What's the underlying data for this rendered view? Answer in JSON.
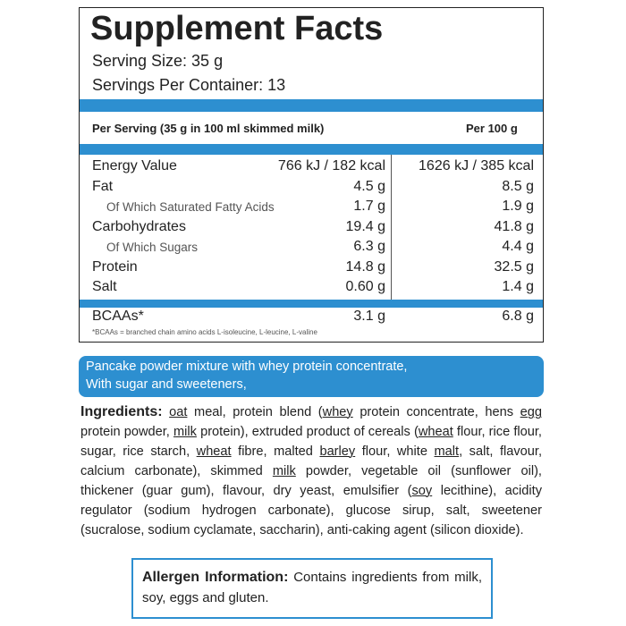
{
  "facts": {
    "title": "Supplement Facts",
    "serving_size": "Serving Size: 35 g",
    "servings_per_container": "Servings Per Container: 13",
    "col_header_1": "Per Serving (35 g in 100 ml skimmed milk)",
    "col_header_2": "Per 100 g",
    "rows": [
      {
        "name": "Energy Value",
        "per_serving": "766 kJ / 182 kcal",
        "per_100g": "1626 kJ / 385 kcal",
        "sub": false
      },
      {
        "name": "Fat",
        "per_serving": "4.5 g",
        "per_100g": "8.5 g",
        "sub": false
      },
      {
        "name": "Of Which Saturated Fatty Acids",
        "per_serving": "1.7 g",
        "per_100g": "1.9 g",
        "sub": true
      },
      {
        "name": "Carbohydrates",
        "per_serving": "19.4 g",
        "per_100g": "41.8 g",
        "sub": false
      },
      {
        "name": "Of Which Sugars",
        "per_serving": "6.3 g",
        "per_100g": "4.4 g",
        "sub": true
      },
      {
        "name": "Protein",
        "per_serving": "14.8 g",
        "per_100g": "32.5 g",
        "sub": false
      },
      {
        "name": "Salt",
        "per_serving": "0.60 g",
        "per_100g": "1.4 g",
        "sub": false
      }
    ],
    "bcaa": {
      "name": "BCAAs*",
      "per_serving": "3.1 g",
      "per_100g": "6.8 g"
    },
    "footnote": "*BCAAs = branched chain amino acids L-isoleucine, L-leucine, L-valine"
  },
  "description": [
    "Pancake powder mixture with whey protein concentrate,",
    "With sugar and sweeteners,"
  ],
  "ingredients": {
    "heading": "Ingredients:",
    "segments": [
      {
        "text": "oat",
        "underline": true
      },
      {
        "text": " meal, protein blend (",
        "underline": false
      },
      {
        "text": "whey",
        "underline": true
      },
      {
        "text": " protein concentrate, hens ",
        "underline": false
      },
      {
        "text": "egg",
        "underline": true
      },
      {
        "text": " protein powder, ",
        "underline": false
      },
      {
        "text": "milk",
        "underline": true
      },
      {
        "text": " protein), extruded product of cereals (",
        "underline": false
      },
      {
        "text": "wheat",
        "underline": true
      },
      {
        "text": " flour, rice flour, sugar, rice starch, ",
        "underline": false
      },
      {
        "text": "wheat",
        "underline": true
      },
      {
        "text": " fibre, malted ",
        "underline": false
      },
      {
        "text": "barley",
        "underline": true
      },
      {
        "text": " flour, white ",
        "underline": false
      },
      {
        "text": "malt",
        "underline": true
      },
      {
        "text": ", salt, flavour, calcium carbonate), skimmed ",
        "underline": false
      },
      {
        "text": "milk",
        "underline": true
      },
      {
        "text": " powder, vegetable oil (sunflower oil), thickener (guar gum), flavour, dry yeast, emulsifier (",
        "underline": false
      },
      {
        "text": "soy",
        "underline": true
      },
      {
        "text": " lecithine), acidity regulator (sodium hydrogen carbonate), glucose sirup, salt, sweetener (sucralose, sodium cyclamate, saccharin), anti-caking agent (silicon dioxide).",
        "underline": false
      }
    ]
  },
  "allergen": {
    "heading": "Allergen Information:",
    "text": "Contains ingredients from milk, soy, eggs and gluten."
  }
}
